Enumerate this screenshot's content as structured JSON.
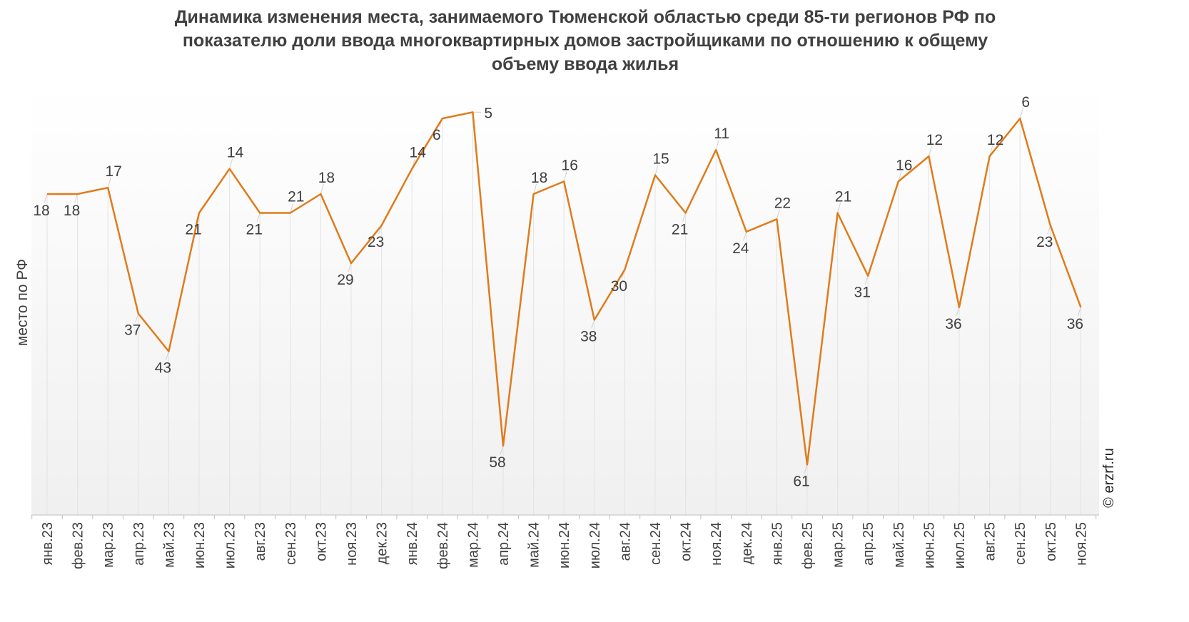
{
  "chart_data": {
    "type": "line",
    "title_lines": [
      "Динамика изменения места, занимаемого Тюменской областью среди 85-ти регионов РФ по",
      "показателю доли ввода многоквартирных домов застройщиками по отношению к общему",
      "объему ввода жилья"
    ],
    "ylabel": "место по РФ",
    "xlabel": "",
    "y_reversed": true,
    "ylim": [
      1,
      69
    ],
    "grid": "vertical",
    "categories": [
      "янв.23",
      "фев.23",
      "мар.23",
      "апр.23",
      "май.23",
      "июн.23",
      "июл.23",
      "авг.23",
      "сен.23",
      "окт.23",
      "ноя.23",
      "дек.23",
      "янв.24",
      "фев.24",
      "мар.24",
      "апр.24",
      "май.24",
      "июн.24",
      "июл.24",
      "авг.24",
      "сен.24",
      "окт.24",
      "ноя.24",
      "дек.24",
      "янв.25",
      "фев.25",
      "мар.25",
      "апр.25",
      "май.25",
      "июн.25",
      "июл.25",
      "авг.25",
      "сен.25",
      "окт.25",
      "ноя.25"
    ],
    "series": [
      {
        "color": "#e07b1a",
        "values": [
          18,
          18,
          17,
          37,
          43,
          21,
          14,
          21,
          21,
          18,
          29,
          23,
          14,
          6,
          5,
          58,
          18,
          16,
          38,
          30,
          15,
          21,
          11,
          24,
          22,
          61,
          21,
          31,
          16,
          12,
          36,
          12,
          6,
          23,
          36
        ]
      }
    ],
    "label_placement": [
      "below",
      "below",
      "above",
      "below",
      "below",
      "below",
      "above",
      "below",
      "above",
      "above",
      "below",
      "below",
      "above",
      "below",
      "right",
      "below",
      "above",
      "above",
      "below",
      "below",
      "above",
      "below",
      "above",
      "below",
      "above",
      "below",
      "above",
      "below",
      "above",
      "above",
      "below",
      "above",
      "above",
      "below",
      "below"
    ],
    "copyright": "© erzrf.ru"
  }
}
